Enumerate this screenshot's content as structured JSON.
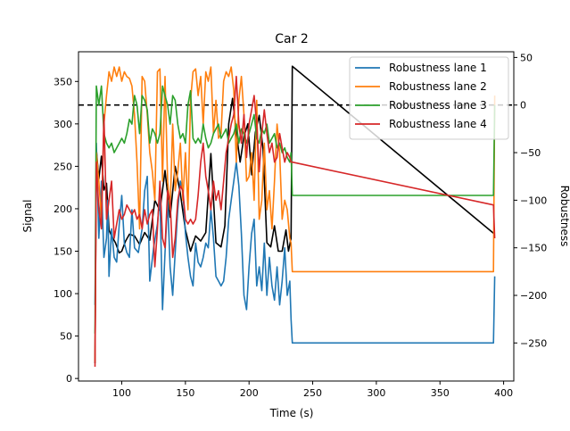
{
  "chart_data": {
    "type": "line",
    "title": "Car 2",
    "xlabel": "Time (s)",
    "ylabel": "Signal",
    "y2label": "Robustness",
    "xlim": [
      66,
      408
    ],
    "ylim": [
      -3,
      385
    ],
    "y2lim": [
      -290,
      56
    ],
    "xticks": [
      100,
      150,
      200,
      250,
      300,
      350,
      400
    ],
    "yticks": [
      0,
      50,
      100,
      150,
      200,
      250,
      300,
      350
    ],
    "y2ticks": [
      50,
      0,
      -50,
      -100,
      -150,
      -200,
      -250
    ],
    "zero_line_y2": 0,
    "legend_position": "top-right",
    "signal": {
      "color": "#000000",
      "x": [
        79,
        80,
        82,
        84,
        86,
        88,
        90,
        92,
        95,
        98,
        100,
        103,
        106,
        110,
        114,
        118,
        122,
        126,
        130,
        134,
        138,
        142,
        146,
        150,
        154,
        158,
        162,
        166,
        170,
        174,
        178,
        181,
        184,
        187,
        190,
        193,
        196,
        199,
        202,
        205,
        208,
        211,
        214,
        217,
        220,
        223,
        226,
        229,
        231,
        233,
        234,
        393
      ],
      "y": [
        18,
        270,
        235,
        262,
        222,
        230,
        175,
        168,
        160,
        148,
        150,
        162,
        170,
        168,
        158,
        172,
        163,
        210,
        198,
        245,
        190,
        250,
        218,
        175,
        150,
        168,
        162,
        172,
        265,
        160,
        155,
        180,
        300,
        330,
        290,
        255,
        285,
        300,
        240,
        290,
        310,
        270,
        160,
        155,
        180,
        150,
        150,
        175,
        150,
        165,
        368,
        170
      ]
    },
    "series": [
      {
        "name": "Robustness lane 1",
        "color": "#1f77b4",
        "x": [
          79,
          80,
          82,
          84,
          85,
          86,
          88,
          89,
          90,
          92,
          94,
          96,
          98,
          100,
          102,
          104,
          106,
          108,
          110,
          113,
          116,
          118,
          120,
          122,
          125,
          128,
          130,
          132,
          134,
          136,
          138,
          140,
          142,
          144,
          146,
          148,
          150,
          152,
          154,
          156,
          158,
          160,
          162,
          164,
          166,
          168,
          170,
          172,
          174,
          176,
          178,
          180,
          182,
          184,
          186,
          188,
          190,
          192,
          194,
          196,
          198,
          200,
          202,
          204,
          206,
          208,
          210,
          212,
          214,
          216,
          218,
          220,
          222,
          224,
          226,
          228,
          230,
          232,
          233,
          234,
          392,
          393
        ],
        "y": [
          -210,
          -40,
          -140,
          -80,
          -120,
          -160,
          -140,
          -100,
          -180,
          -130,
          -160,
          -165,
          -125,
          -95,
          -145,
          -155,
          -160,
          -110,
          -150,
          -155,
          -130,
          -90,
          -75,
          -185,
          -150,
          -125,
          -95,
          -215,
          -155,
          -100,
          -170,
          -200,
          -155,
          -110,
          -80,
          -90,
          -135,
          -160,
          -180,
          -190,
          -145,
          -165,
          -170,
          -160,
          -145,
          -150,
          -110,
          -140,
          -180,
          -185,
          -190,
          -185,
          -160,
          -120,
          -100,
          -80,
          -60,
          -85,
          -135,
          -200,
          -215,
          -170,
          -135,
          -120,
          -190,
          -170,
          -195,
          -145,
          -200,
          -160,
          -190,
          -205,
          -170,
          -210,
          -185,
          -150,
          -200,
          -185,
          -225,
          -250,
          -250,
          -180
        ]
      },
      {
        "name": "Robustness lane 2",
        "color": "#ff7f0e",
        "x": [
          79,
          80,
          82,
          84,
          86,
          88,
          90,
          92,
          94,
          96,
          98,
          100,
          102,
          104,
          106,
          108,
          110,
          112,
          114,
          116,
          118,
          120,
          122,
          124,
          126,
          128,
          130,
          132,
          134,
          136,
          138,
          140,
          142,
          144,
          146,
          148,
          150,
          152,
          154,
          156,
          158,
          160,
          162,
          164,
          166,
          168,
          170,
          172,
          174,
          176,
          178,
          180,
          182,
          184,
          186,
          188,
          190,
          192,
          194,
          196,
          198,
          200,
          202,
          204,
          206,
          208,
          210,
          212,
          214,
          216,
          218,
          220,
          222,
          224,
          226,
          228,
          230,
          232,
          233,
          234,
          392,
          393
        ],
        "y": [
          -270,
          -50,
          -80,
          -120,
          -20,
          10,
          35,
          25,
          40,
          30,
          40,
          25,
          35,
          30,
          28,
          20,
          -10,
          -60,
          -130,
          30,
          25,
          -10,
          -50,
          -70,
          -100,
          35,
          38,
          -80,
          30,
          -80,
          -110,
          -20,
          -90,
          -70,
          -40,
          -100,
          -50,
          -110,
          5,
          35,
          38,
          10,
          30,
          -20,
          35,
          25,
          40,
          -30,
          5,
          -35,
          -30,
          25,
          35,
          30,
          40,
          15,
          -60,
          5,
          30,
          -10,
          -80,
          -75,
          -50,
          -100,
          5,
          -120,
          -100,
          -40,
          -110,
          -90,
          -130,
          -80,
          -20,
          -50,
          -120,
          -100,
          -110,
          -140,
          -145,
          -175,
          -175,
          10
        ]
      },
      {
        "name": "Robustness lane 3",
        "color": "#2ca02c",
        "x": [
          79,
          80,
          82,
          84,
          86,
          88,
          90,
          92,
          94,
          96,
          98,
          100,
          102,
          104,
          106,
          108,
          110,
          112,
          114,
          116,
          118,
          120,
          122,
          124,
          126,
          128,
          130,
          132,
          134,
          136,
          138,
          140,
          142,
          144,
          146,
          148,
          150,
          152,
          154,
          156,
          158,
          160,
          162,
          164,
          166,
          168,
          170,
          172,
          174,
          176,
          178,
          180,
          182,
          184,
          186,
          188,
          190,
          192,
          194,
          196,
          198,
          200,
          202,
          204,
          206,
          208,
          210,
          212,
          214,
          216,
          218,
          220,
          222,
          224,
          226,
          228,
          230,
          232,
          233,
          234,
          392,
          393
        ],
        "y": [
          -240,
          20,
          0,
          20,
          -30,
          -40,
          -45,
          -40,
          -50,
          -45,
          -40,
          -35,
          -40,
          -30,
          -15,
          -20,
          10,
          0,
          -30,
          10,
          5,
          -5,
          -40,
          -25,
          -30,
          -40,
          -30,
          20,
          10,
          0,
          -20,
          10,
          5,
          -20,
          -35,
          -30,
          -40,
          0,
          15,
          -35,
          -40,
          -35,
          -40,
          -20,
          -35,
          -45,
          -40,
          -30,
          -25,
          -20,
          -35,
          -30,
          -25,
          -40,
          -35,
          -30,
          -20,
          -40,
          -25,
          -30,
          -40,
          -30,
          -20,
          -10,
          -35,
          -40,
          -25,
          -30,
          -20,
          -40,
          -35,
          -30,
          -45,
          -40,
          -50,
          -45,
          -55,
          -60,
          -50,
          -95,
          -95,
          0
        ]
      },
      {
        "name": "Robustness lane 4",
        "color": "#d62728",
        "x": [
          79,
          80,
          82,
          84,
          86,
          88,
          90,
          92,
          94,
          96,
          98,
          100,
          102,
          104,
          106,
          108,
          110,
          112,
          114,
          116,
          118,
          120,
          122,
          124,
          126,
          128,
          130,
          132,
          134,
          136,
          138,
          140,
          142,
          144,
          146,
          148,
          150,
          152,
          154,
          156,
          158,
          160,
          162,
          164,
          166,
          168,
          170,
          172,
          174,
          176,
          178,
          180,
          182,
          184,
          186,
          188,
          190,
          192,
          194,
          196,
          198,
          200,
          202,
          204,
          206,
          208,
          210,
          212,
          214,
          216,
          218,
          220,
          222,
          224,
          226,
          228,
          230,
          232,
          233,
          234,
          392,
          393
        ],
        "y": [
          -275,
          -60,
          -110,
          -130,
          -10,
          -120,
          -100,
          -80,
          -140,
          -125,
          -110,
          -120,
          -115,
          -105,
          -110,
          -115,
          -110,
          -120,
          -115,
          -130,
          -110,
          -125,
          -115,
          -110,
          -170,
          -130,
          -80,
          -140,
          -150,
          -90,
          -100,
          -160,
          -140,
          -100,
          -85,
          -90,
          -120,
          -125,
          -120,
          -125,
          -120,
          -95,
          -60,
          -40,
          -75,
          -90,
          -110,
          -80,
          -100,
          -90,
          -110,
          -80,
          -50,
          -35,
          -20,
          -10,
          30,
          -20,
          -40,
          -10,
          -55,
          -20,
          -5,
          10,
          -20,
          -70,
          -30,
          -5,
          -30,
          -50,
          -40,
          -60,
          -55,
          -30,
          -45,
          -60,
          -50,
          -55,
          -60,
          -60,
          -105,
          -140
        ]
      }
    ]
  }
}
